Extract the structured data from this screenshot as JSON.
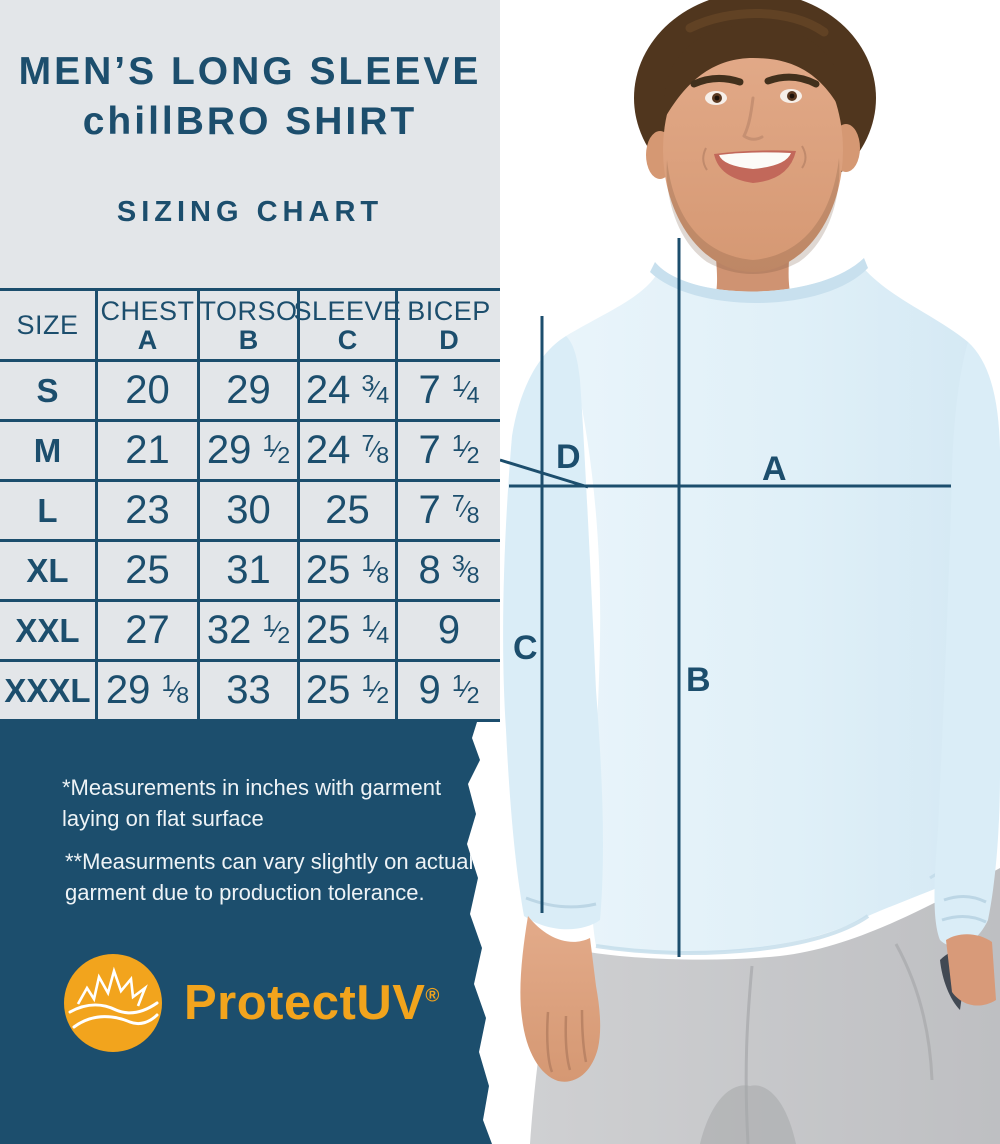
{
  "colors": {
    "navy": "#1c4e6d",
    "panel_gray": "#e3e6e9",
    "orange": "#f2a41d",
    "shirt_blue": "#ddeef7",
    "white": "#ffffff"
  },
  "titles": {
    "line1": "MEN’S LONG SLEEVE",
    "line2": "chillBRO SHIRT",
    "subtitle": "SIZING CHART"
  },
  "chart_data": {
    "type": "table",
    "title": "SIZING CHART",
    "units": "inches",
    "columns": [
      {
        "label": "SIZE",
        "letter": ""
      },
      {
        "label": "CHEST",
        "letter": "A"
      },
      {
        "label": "TORSO",
        "letter": "B"
      },
      {
        "label": "SLEEVE",
        "letter": "C"
      },
      {
        "label": "BICEP",
        "letter": "D"
      }
    ],
    "rows": [
      [
        "S",
        "20",
        "29",
        "24 3/4",
        "7 1/4"
      ],
      [
        "M",
        "21",
        "29 1/2",
        "24 7/8",
        "7 1/2"
      ],
      [
        "L",
        "23",
        "30",
        "25",
        "7 7/8"
      ],
      [
        "XL",
        "25",
        "31",
        "25 1/8",
        "8 3/8"
      ],
      [
        "XXL",
        "27",
        "32 1/2",
        "25 1/4",
        "9"
      ],
      [
        "XXXL",
        "29 1/8",
        "33",
        "25 1/2",
        "9 1/2"
      ]
    ]
  },
  "notes": {
    "n1_line1": "*Measurements in inches with garment",
    "n1_line2": "laying on flat surface",
    "n2_line1": "**Measurments can vary slightly on actual",
    "n2_line2": "garment due to production tolerance."
  },
  "logo": {
    "text": "ProtectUV",
    "registered": "®",
    "icon": "sun-waves-icon"
  },
  "overlay_labels": {
    "a": "A",
    "b": "B",
    "c": "C",
    "d": "D"
  }
}
